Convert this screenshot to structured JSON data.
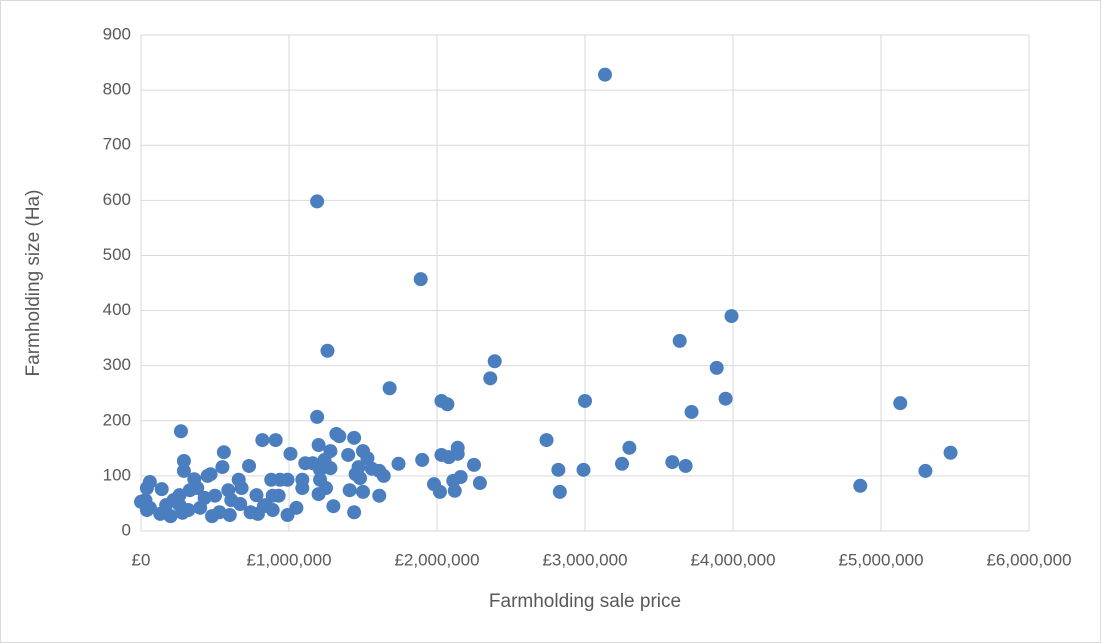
{
  "chart_data": {
    "type": "scatter",
    "x_label": "Farmholding sale price",
    "y_label": "Farmholding size (Ha)",
    "color": "#4a7ebf",
    "grid": true,
    "xlim": [
      0,
      6000000
    ],
    "xticks": [
      {
        "value": 0,
        "label": "£0"
      },
      {
        "value": 1000000,
        "label": "£1,000,000"
      },
      {
        "value": 2000000,
        "label": "£2,000,000"
      },
      {
        "value": 3000000,
        "label": "£3,000,000"
      },
      {
        "value": 4000000,
        "label": "£4,000,000"
      },
      {
        "value": 5000000,
        "label": "£5,000,000"
      },
      {
        "value": 6000000,
        "label": "£6,000,000"
      }
    ],
    "ylim": [
      0,
      900
    ],
    "yticks": [
      0,
      100,
      200,
      300,
      400,
      500,
      600,
      700,
      800,
      900
    ],
    "x": [
      3135000,
      1190000,
      1890000,
      1260000,
      1680000,
      2390000,
      2360000,
      2030000,
      2070000,
      1190000,
      270000,
      3000000,
      3640000,
      3990000,
      3890000,
      3950000,
      3720000,
      5130000,
      4860000,
      5300000,
      5470000,
      2740000,
      2820000,
      2830000,
      2990000,
      3250000,
      3300000,
      3590000,
      3680000,
      1900000,
      1980000,
      2020000,
      2030000,
      2080000,
      2110000,
      2120000,
      2140000,
      2140000,
      2160000,
      2250000,
      2290000,
      1160000,
      1200000,
      1210000,
      1210000,
      1200000,
      1240000,
      1280000,
      1280000,
      1320000,
      1340000,
      1440000,
      1400000,
      1470000,
      1450000,
      1500000,
      1530000,
      1480000,
      1410000,
      1500000,
      1440000,
      1300000,
      1250000,
      1610000,
      1640000,
      1610000,
      1740000,
      1560000,
      1010000,
      820000,
      910000,
      880000,
      940000,
      990000,
      1110000,
      1090000,
      1090000,
      1050000,
      990000,
      840000,
      890000,
      930000,
      780000,
      730000,
      660000,
      680000,
      610000,
      550000,
      560000,
      470000,
      450000,
      360000,
      290000,
      290000,
      330000,
      260000,
      220000,
      140000,
      60000,
      40000,
      30000,
      0,
      40000,
      60000,
      130000,
      200000,
      280000,
      320000,
      400000,
      480000,
      530000,
      600000,
      670000,
      740000,
      790000,
      830000,
      890000,
      430000,
      500000,
      590000,
      380000,
      260000,
      170000
    ],
    "y": [
      828,
      598,
      457,
      327,
      259,
      308,
      277,
      236,
      230,
      207,
      181,
      236,
      345,
      390,
      296,
      240,
      216,
      232,
      82,
      109,
      142,
      165,
      111,
      71,
      111,
      122,
      151,
      125,
      118,
      129,
      85,
      71,
      138,
      134,
      91,
      73,
      151,
      140,
      98,
      120,
      87,
      123,
      156,
      111,
      93,
      67,
      129,
      145,
      114,
      176,
      172,
      169,
      138,
      116,
      103,
      145,
      132,
      96,
      74,
      71,
      34,
      45,
      78,
      109,
      100,
      64,
      122,
      113,
      140,
      165,
      165,
      93,
      93,
      93,
      123,
      93,
      78,
      42,
      29,
      47,
      38,
      64,
      65,
      118,
      93,
      78,
      56,
      116,
      143,
      103,
      100,
      94,
      127,
      109,
      74,
      65,
      56,
      76,
      89,
      78,
      56,
      53,
      38,
      42,
      31,
      27,
      33,
      38,
      42,
      27,
      34,
      29,
      49,
      34,
      31,
      45,
      64,
      60,
      64,
      74,
      78,
      47,
      47
    ]
  }
}
